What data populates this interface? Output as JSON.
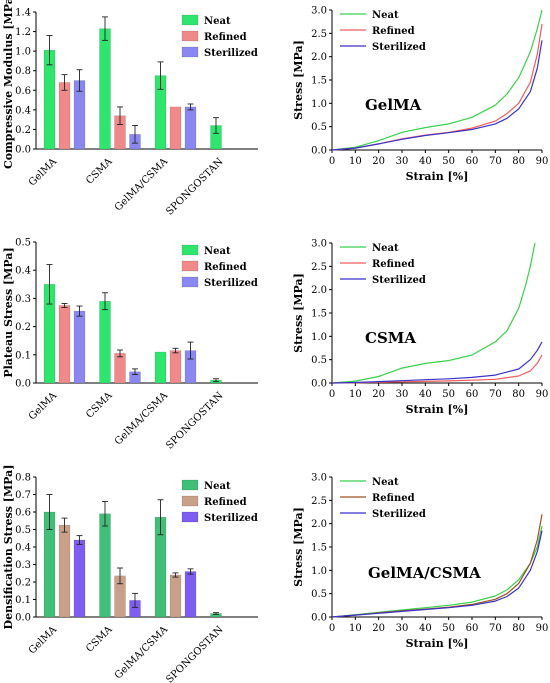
{
  "colors": {
    "neat": "#2ee66e",
    "refined": "#f08a8a",
    "sterilized": "#8a88f0",
    "neat_bottom": "#3fbf77",
    "refined_bottom": "#c9a08a",
    "sterilized_bottom": "#7e5ef0",
    "line_neat": "#39d04c",
    "line_refined": "#ef5d5d",
    "line_sterilized": "#3a33c9",
    "line_refined_bottom": "#a0501e"
  },
  "chart_data": [
    {
      "type": "bar",
      "ylabel": "Compressive Modulus [MPa]",
      "categories": [
        "GelMA",
        "CSMA",
        "GelMA/CSMA",
        "SPONGOSTAN"
      ],
      "ylim": [
        0,
        1.4
      ],
      "yticks": [
        "0.0",
        "0.2",
        "0.4",
        "0.6",
        "0.8",
        "1.0",
        "1.2",
        "1.4"
      ],
      "legend": [
        "Neat",
        "Refined",
        "Sterilized"
      ],
      "series": [
        {
          "name": "Neat",
          "values": [
            1.01,
            1.23,
            0.75,
            0.24
          ],
          "errors": [
            0.15,
            0.12,
            0.14,
            0.08
          ]
        },
        {
          "name": "Refined",
          "values": [
            0.68,
            0.34,
            0.43,
            null
          ],
          "errors": [
            0.08,
            0.09,
            0.0,
            null
          ]
        },
        {
          "name": "Sterilized",
          "values": [
            0.7,
            0.15,
            0.43,
            null
          ],
          "errors": [
            0.11,
            0.09,
            0.03,
            null
          ]
        }
      ]
    },
    {
      "type": "line",
      "ylabel": "Stress [MPa]",
      "xlabel": "Strain [%]",
      "annotation": "GelMA",
      "xlim": [
        0,
        90
      ],
      "ylim": [
        0,
        3.0
      ],
      "xticks": [
        "0",
        "10",
        "20",
        "30",
        "40",
        "50",
        "60",
        "70",
        "80",
        "90"
      ],
      "yticks": [
        "0.0",
        "0.5",
        "1.0",
        "1.5",
        "2.0",
        "2.5",
        "3.0"
      ],
      "legend": [
        "Neat",
        "Refined",
        "Sterilized"
      ],
      "series": [
        {
          "name": "Neat",
          "x": [
            0,
            10,
            20,
            30,
            40,
            50,
            60,
            70,
            75,
            80,
            85,
            88,
            90
          ],
          "y": [
            0,
            0.06,
            0.2,
            0.38,
            0.48,
            0.56,
            0.7,
            0.96,
            1.2,
            1.55,
            2.1,
            2.6,
            3.0
          ]
        },
        {
          "name": "Refined",
          "x": [
            0,
            10,
            20,
            30,
            40,
            50,
            60,
            70,
            75,
            80,
            85,
            88,
            90
          ],
          "y": [
            0,
            0.04,
            0.13,
            0.24,
            0.32,
            0.38,
            0.47,
            0.62,
            0.78,
            1.0,
            1.45,
            2.05,
            2.7
          ]
        },
        {
          "name": "Sterilized",
          "x": [
            0,
            10,
            20,
            30,
            40,
            50,
            60,
            70,
            75,
            80,
            85,
            88,
            90
          ],
          "y": [
            0,
            0.04,
            0.13,
            0.23,
            0.31,
            0.37,
            0.44,
            0.56,
            0.68,
            0.88,
            1.25,
            1.75,
            2.35
          ]
        }
      ]
    },
    {
      "type": "bar",
      "ylabel": "Plateau Stress [MPa]",
      "categories": [
        "GelMA",
        "CSMA",
        "GelMA/CSMA",
        "SPONGOSTAN"
      ],
      "ylim": [
        0,
        0.5
      ],
      "yticks": [
        "0.0",
        "0.1",
        "0.2",
        "0.3",
        "0.4",
        "0.5"
      ],
      "legend": [
        "Neat",
        "Refined",
        "Sterilized"
      ],
      "series": [
        {
          "name": "Neat",
          "values": [
            0.35,
            0.29,
            0.11,
            0.01
          ],
          "errors": [
            0.07,
            0.03,
            0.0,
            0.005
          ]
        },
        {
          "name": "Refined",
          "values": [
            0.275,
            0.105,
            0.115,
            null
          ],
          "errors": [
            0.007,
            0.012,
            0.008,
            null
          ]
        },
        {
          "name": "Sterilized",
          "values": [
            0.255,
            0.04,
            0.115,
            null
          ],
          "errors": [
            0.018,
            0.01,
            0.03,
            null
          ]
        }
      ]
    },
    {
      "type": "line",
      "ylabel": "Stress [MPa]",
      "xlabel": "Strain [%]",
      "annotation": "CSMA",
      "xlim": [
        0,
        90
      ],
      "ylim": [
        0,
        3.0
      ],
      "xticks": [
        "0",
        "10",
        "20",
        "30",
        "40",
        "50",
        "60",
        "70",
        "80",
        "90"
      ],
      "yticks": [
        "0.0",
        "0.5",
        "1.0",
        "1.5",
        "2.0",
        "2.5",
        "3.0"
      ],
      "legend": [
        "Neat",
        "Refined",
        "Sterilized"
      ],
      "series": [
        {
          "name": "Neat",
          "x": [
            0,
            10,
            20,
            30,
            40,
            50,
            60,
            70,
            75,
            80,
            83,
            85,
            87
          ],
          "y": [
            0,
            0.04,
            0.14,
            0.32,
            0.42,
            0.48,
            0.6,
            0.88,
            1.12,
            1.6,
            2.1,
            2.5,
            3.0
          ]
        },
        {
          "name": "Refined",
          "x": [
            0,
            10,
            20,
            30,
            40,
            50,
            60,
            70,
            80,
            85,
            88,
            90
          ],
          "y": [
            0,
            0.005,
            0.015,
            0.025,
            0.035,
            0.045,
            0.06,
            0.08,
            0.15,
            0.26,
            0.42,
            0.6
          ]
        },
        {
          "name": "Sterilized",
          "x": [
            0,
            10,
            20,
            30,
            40,
            50,
            60,
            70,
            80,
            85,
            88,
            90
          ],
          "y": [
            0,
            0.01,
            0.03,
            0.05,
            0.07,
            0.09,
            0.12,
            0.17,
            0.3,
            0.5,
            0.7,
            0.88
          ]
        }
      ]
    },
    {
      "type": "bar",
      "ylabel": "Densification Stress [MPa]",
      "categories": [
        "GelMA",
        "CSMA",
        "GelMA/CSMA",
        "SPONGOSTAN"
      ],
      "ylim": [
        0,
        0.8
      ],
      "yticks": [
        "0.0",
        "0.1",
        "0.2",
        "0.3",
        "0.4",
        "0.5",
        "0.6",
        "0.7",
        "0.8"
      ],
      "legend": [
        "Neat",
        "Refined",
        "Sterilized"
      ],
      "series": [
        {
          "name": "Neat",
          "values": [
            0.6,
            0.59,
            0.57,
            0.02
          ],
          "errors": [
            0.1,
            0.07,
            0.1,
            0.005
          ]
        },
        {
          "name": "Refined",
          "values": [
            0.525,
            0.235,
            0.24,
            null
          ],
          "errors": [
            0.04,
            0.045,
            0.012,
            null
          ]
        },
        {
          "name": "Sterilized",
          "values": [
            0.44,
            0.095,
            0.26,
            null
          ],
          "errors": [
            0.025,
            0.04,
            0.015,
            null
          ]
        }
      ]
    },
    {
      "type": "line",
      "ylabel": "Stress [MPa]",
      "xlabel": "Strain [%]",
      "annotation": "GelMA/CSMA",
      "xlim": [
        0,
        90
      ],
      "ylim": [
        0,
        3.0
      ],
      "xticks": [
        "0",
        "10",
        "20",
        "30",
        "40",
        "50",
        "60",
        "70",
        "80",
        "90"
      ],
      "yticks": [
        "0.0",
        "0.5",
        "1.0",
        "1.5",
        "2.0",
        "2.5",
        "3.0"
      ],
      "legend": [
        "Neat",
        "Refined",
        "Sterilized"
      ],
      "series": [
        {
          "name": "Neat",
          "x": [
            0,
            10,
            20,
            30,
            40,
            50,
            60,
            70,
            75,
            80,
            85,
            88,
            90
          ],
          "y": [
            0,
            0.05,
            0.1,
            0.15,
            0.2,
            0.25,
            0.32,
            0.45,
            0.58,
            0.8,
            1.15,
            1.5,
            1.95
          ]
        },
        {
          "name": "Refined",
          "x": [
            0,
            10,
            20,
            30,
            40,
            50,
            60,
            70,
            75,
            80,
            85,
            88,
            90
          ],
          "y": [
            0,
            0.04,
            0.09,
            0.13,
            0.17,
            0.21,
            0.27,
            0.38,
            0.5,
            0.72,
            1.15,
            1.65,
            2.2
          ]
        },
        {
          "name": "Sterilized",
          "x": [
            0,
            10,
            20,
            30,
            40,
            50,
            60,
            70,
            75,
            80,
            85,
            88,
            90
          ],
          "y": [
            0,
            0.04,
            0.08,
            0.12,
            0.16,
            0.2,
            0.25,
            0.34,
            0.44,
            0.62,
            1.0,
            1.4,
            1.85
          ]
        }
      ]
    }
  ]
}
